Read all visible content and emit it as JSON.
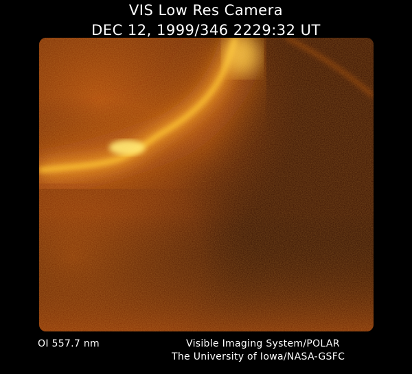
{
  "header": {
    "title": "VIS Low Res Camera",
    "timestamp": "DEC 12, 1999/346 2229:32 UT"
  },
  "image": {
    "subject": "auroral oval",
    "palette": {
      "background": "#2a0c01",
      "glow": "#c8560a",
      "arc": "#ffc92e",
      "highlight": "#fff07a"
    }
  },
  "footer": {
    "filter": "OI  557.7 nm",
    "instrument": "Visible Imaging System/POLAR",
    "institution": "The University of Iowa/NASA-GSFC"
  }
}
